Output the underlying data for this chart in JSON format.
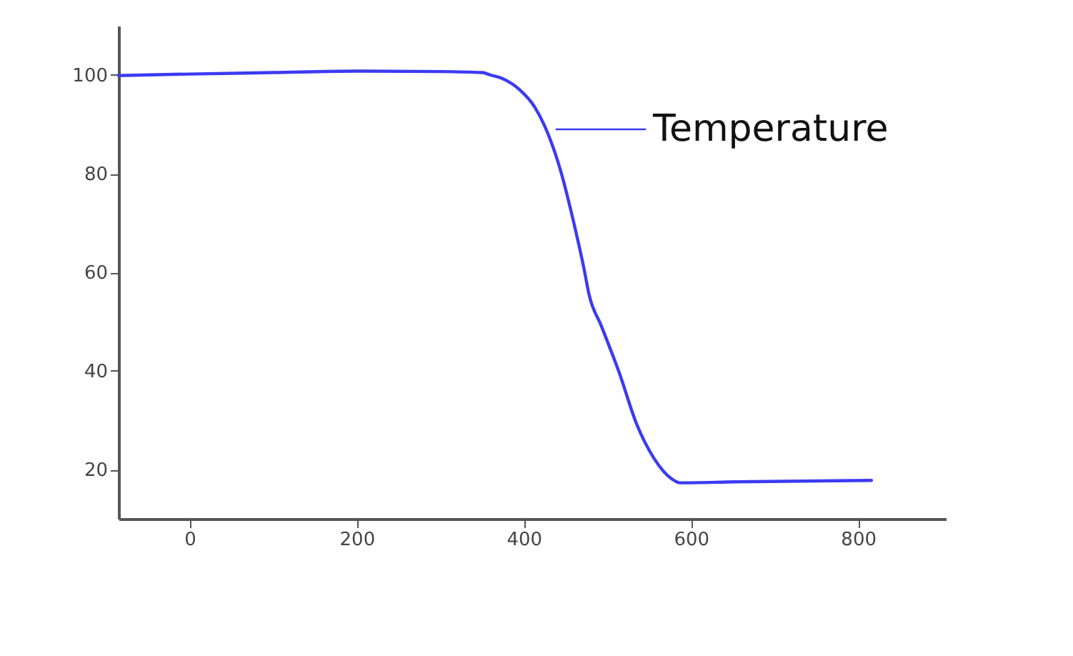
{
  "chart_data": {
    "type": "line",
    "xlim": [
      -85,
      905
    ],
    "xticks": [
      0,
      200,
      400,
      600,
      800
    ],
    "ylim": [
      10,
      110
    ],
    "yticks": [
      20,
      40,
      60,
      80,
      100
    ],
    "grid": false,
    "legend": "top right",
    "marker": "none",
    "line_style": "solid",
    "series": [
      {
        "name": "Temperature",
        "color": "#3b3bf2",
        "x": [
          -85,
          0,
          100,
          200,
          300,
          350,
          360,
          374,
          395,
          413,
          430,
          444,
          458,
          472,
          478,
          493,
          514,
          535,
          556,
          577,
          587,
          654,
          816
        ],
        "values": [
          99.9,
          100.2,
          100.5,
          100.8,
          100.7,
          100.5,
          100,
          99.3,
          97,
          93.5,
          87.6,
          80.6,
          71.3,
          60.7,
          55.5,
          49,
          39.7,
          29.2,
          22.2,
          18.1,
          17.3,
          17.5,
          17.8
        ]
      }
    ]
  }
}
